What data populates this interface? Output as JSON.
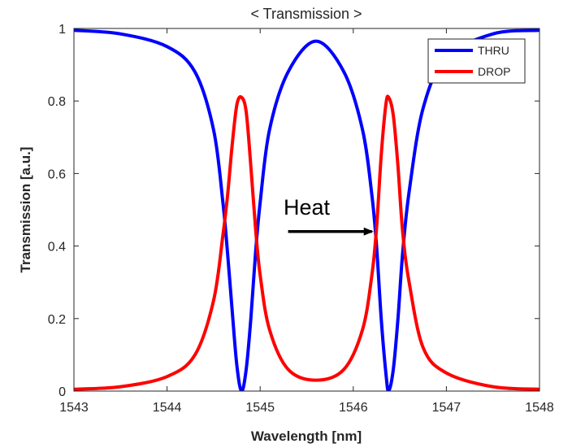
{
  "chart_data": {
    "type": "line",
    "title": "< Transmission >",
    "xlabel": "Wavelength [nm]",
    "ylabel": "Transmission [a.u.]",
    "xlim": [
      1543,
      1548
    ],
    "ylim": [
      0,
      1
    ],
    "xticks": [
      "1543",
      "1544",
      "1545",
      "1546",
      "1547",
      "1548"
    ],
    "yticks": [
      "0",
      "0.2",
      "0.4",
      "0.6",
      "0.8",
      "1"
    ],
    "grid": false,
    "legend_position": "top-right",
    "series": [
      {
        "name": "THRU",
        "color": "#0000ff",
        "x": [
          1543.0,
          1543.5,
          1544.0,
          1544.3,
          1544.5,
          1544.6,
          1544.65,
          1544.7,
          1544.75,
          1544.8,
          1544.85,
          1544.9,
          1544.95,
          1545.0,
          1545.1,
          1545.3,
          1545.6,
          1545.9,
          1546.1,
          1546.2,
          1546.25,
          1546.3,
          1546.35,
          1546.38,
          1546.43,
          1546.48,
          1546.53,
          1546.6,
          1546.75,
          1547.0,
          1547.5,
          1548.0
        ],
        "y": [
          0.995,
          0.985,
          0.95,
          0.88,
          0.72,
          0.52,
          0.38,
          0.22,
          0.07,
          0.0,
          0.06,
          0.2,
          0.38,
          0.52,
          0.72,
          0.88,
          0.965,
          0.88,
          0.72,
          0.54,
          0.4,
          0.2,
          0.05,
          0.0,
          0.06,
          0.2,
          0.38,
          0.55,
          0.78,
          0.92,
          0.985,
          0.995
        ]
      },
      {
        "name": "DROP",
        "color": "#ff0000",
        "x": [
          1543.0,
          1543.5,
          1544.0,
          1544.3,
          1544.5,
          1544.6,
          1544.65,
          1544.7,
          1544.75,
          1544.8,
          1544.85,
          1544.9,
          1544.95,
          1545.0,
          1545.1,
          1545.3,
          1545.6,
          1545.9,
          1546.1,
          1546.2,
          1546.25,
          1546.3,
          1546.35,
          1546.38,
          1546.43,
          1546.48,
          1546.53,
          1546.6,
          1546.75,
          1547.0,
          1547.5,
          1548.0
        ],
        "y": [
          0.005,
          0.012,
          0.04,
          0.1,
          0.25,
          0.43,
          0.54,
          0.68,
          0.79,
          0.81,
          0.77,
          0.62,
          0.45,
          0.32,
          0.17,
          0.06,
          0.03,
          0.06,
          0.17,
          0.32,
          0.45,
          0.65,
          0.79,
          0.81,
          0.76,
          0.62,
          0.44,
          0.3,
          0.12,
          0.05,
          0.012,
          0.005
        ]
      }
    ],
    "annotation": {
      "text": "Heat",
      "arrow_from_x": 1545.3,
      "arrow_to_x": 1546.2,
      "arrow_y": 0.44
    }
  }
}
